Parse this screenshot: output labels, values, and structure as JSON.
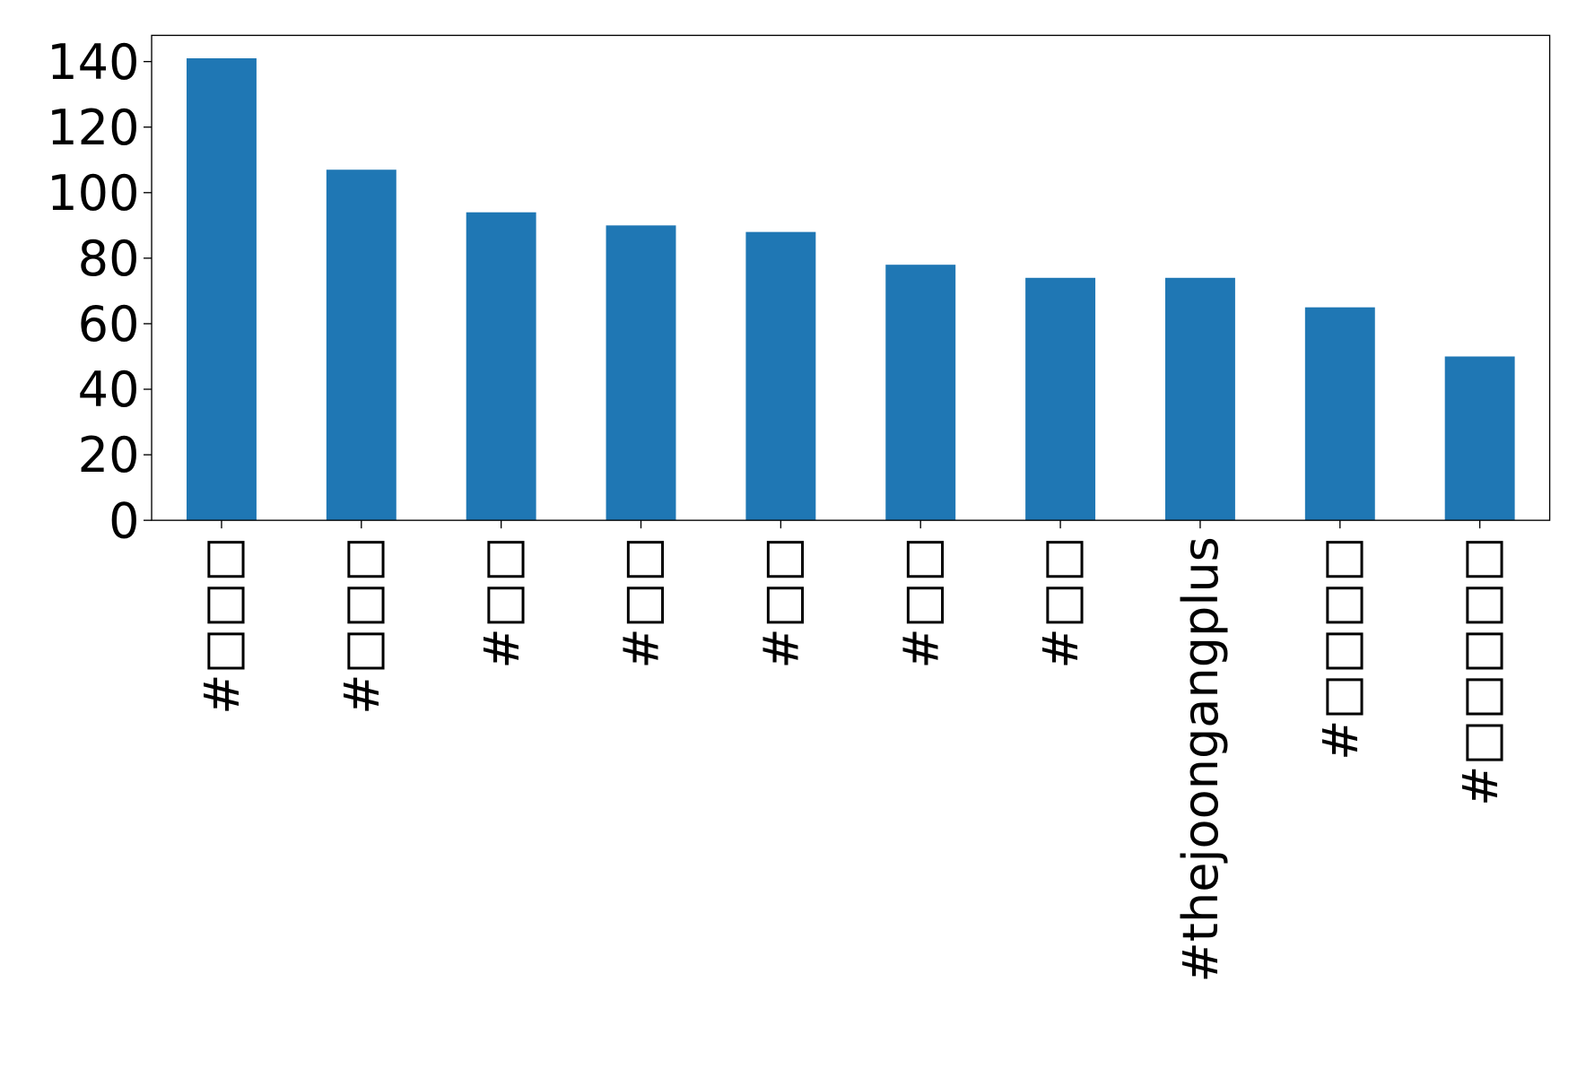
{
  "chart_data": {
    "type": "bar",
    "categories": [
      "#□□□",
      "#□□□",
      "#□□",
      "#□□",
      "#□□",
      "#□□",
      "#□□",
      "#thejoongangplus",
      "#□□□□",
      "#□□□□□"
    ],
    "values": [
      141,
      107,
      94,
      90,
      88,
      78,
      74,
      74,
      65,
      50
    ],
    "color": "#1f77b4",
    "ylim": [
      0,
      148
    ],
    "yticks": [
      0,
      20,
      40,
      60,
      80,
      100,
      120,
      140
    ],
    "grid": false
  }
}
